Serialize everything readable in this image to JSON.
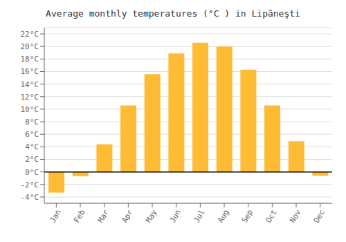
{
  "chart_data": {
    "type": "bar",
    "title": "Average monthly temperatures (°C ) in Lipăneşti",
    "categories": [
      "Jan",
      "Feb",
      "Mar",
      "Apr",
      "May",
      "Jun",
      "Jul",
      "Aug",
      "Sep",
      "Oct",
      "Nov",
      "Dec"
    ],
    "values": [
      -3.3,
      -0.7,
      4.4,
      10.6,
      15.6,
      18.9,
      20.6,
      20.0,
      16.3,
      10.6,
      4.9,
      -0.6
    ],
    "color": "#FFBB33",
    "ylim": [
      -5,
      23
    ],
    "yticks": [
      {
        "value": -4,
        "label": "-4°C"
      },
      {
        "value": -2,
        "label": "-2°C"
      },
      {
        "value": 0,
        "label": "0°C"
      },
      {
        "value": 2,
        "label": "2°C"
      },
      {
        "value": 4,
        "label": "4°C"
      },
      {
        "value": 6,
        "label": "6°C"
      },
      {
        "value": 8,
        "label": "8°C"
      },
      {
        "value": 10,
        "label": "10°C"
      },
      {
        "value": 12,
        "label": "12°C"
      },
      {
        "value": 14,
        "label": "14°C"
      },
      {
        "value": 16,
        "label": "16°C"
      },
      {
        "value": 18,
        "label": "18°C"
      },
      {
        "value": 20,
        "label": "20°C"
      },
      {
        "value": 22,
        "label": "22°C"
      }
    ],
    "grid": true
  }
}
